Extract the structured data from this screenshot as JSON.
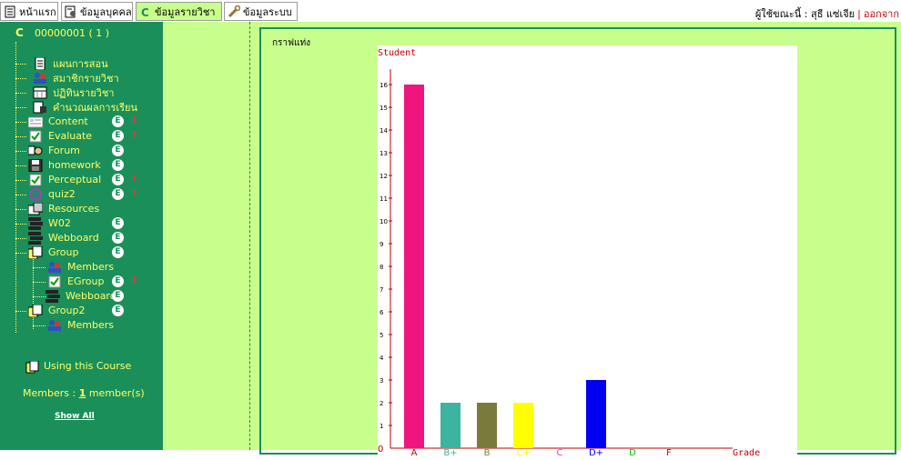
{
  "tabs": [
    {
      "label": "หน้าแรก"
    },
    {
      "label": "ข้อมูลบุคคล"
    },
    {
      "label": "ข้อมูลรายวิชา"
    },
    {
      "label": "ข้อมูลระบบ"
    }
  ],
  "user": {
    "prefix": "ผู้ใช้ขณะนี้ :",
    "name": "สุธี แซ่เจีย",
    "separator": "|",
    "logout": "ออกจาก"
  },
  "course": {
    "id": "00000001 ( 1 )",
    "icon": "course-c-icon"
  },
  "sidebar": {
    "items": [
      {
        "label": "แผนการสอน",
        "icon": "plan-document-icon"
      },
      {
        "label": "สมาชิกรายวิชา",
        "icon": "members-icon"
      },
      {
        "label": "ปฏิทินรายวิชา",
        "icon": "calendar-icon"
      },
      {
        "label": "คำนวณผลการเรียน",
        "icon": "calculate-grade-icon"
      },
      {
        "label": "Content",
        "icon": "content-icon"
      },
      {
        "label": "Evaluate",
        "icon": "checkbox-icon"
      },
      {
        "label": "Forum",
        "icon": "forum-icon"
      },
      {
        "label": "homework",
        "icon": "disk-icon"
      },
      {
        "label": "Perceptual",
        "icon": "checkbox-icon"
      },
      {
        "label": "quiz2",
        "icon": "quiz-icon"
      },
      {
        "label": "Resources",
        "icon": "resources-icon"
      },
      {
        "label": "W02",
        "icon": "webboard-icon"
      },
      {
        "label": "Webboard",
        "icon": "webboard-icon"
      },
      {
        "label": "Group",
        "icon": "group-folder-icon"
      },
      {
        "label": "Members",
        "icon": "members-icon"
      },
      {
        "label": "EGroup",
        "icon": "checkbox-icon"
      },
      {
        "label": "Webboard",
        "icon": "webboard-icon"
      },
      {
        "label": "Group2",
        "icon": "group-folder-icon"
      },
      {
        "label": "Members",
        "icon": "members-icon"
      }
    ],
    "using_course": "Using this Course",
    "members_label": "Members :",
    "members_count": "1",
    "members_unit": "member(s)",
    "show_all": "Show All"
  },
  "graph_title": "กราฟแท่ง",
  "chart_data": {
    "type": "bar",
    "ylabel": "Student",
    "xlabel": "Grade",
    "ylim": [
      0,
      17
    ],
    "yticks": [
      "0",
      "1",
      "2",
      "3",
      "4",
      "5",
      "6",
      "7",
      "8",
      "9",
      "10",
      "11",
      "12",
      "13",
      "14",
      "15",
      "16"
    ],
    "categories": [
      "A",
      "B+",
      "B",
      "C+",
      "C",
      "D+",
      "D",
      "F"
    ],
    "values": [
      16,
      2,
      2,
      2,
      0,
      3,
      0,
      0
    ],
    "bar_colors": [
      "#f0147e",
      "#3cb4a0",
      "#7a7a3c",
      "#ffff00",
      "#e040e0",
      "#0000f0",
      "#00c000",
      "#c00000"
    ],
    "label_colors": [
      "#c00000",
      "#3cb4a0",
      "#7a7a3c",
      "#ffff00",
      "#e040e0",
      "#0000f0",
      "#00c000",
      "#c00000"
    ],
    "axis_color": "#c00000"
  },
  "colors": {
    "sidebar_bg": "#1a8f5a",
    "panel_bg": "#c8ff8c",
    "sidebar_text": "#ffff66"
  }
}
